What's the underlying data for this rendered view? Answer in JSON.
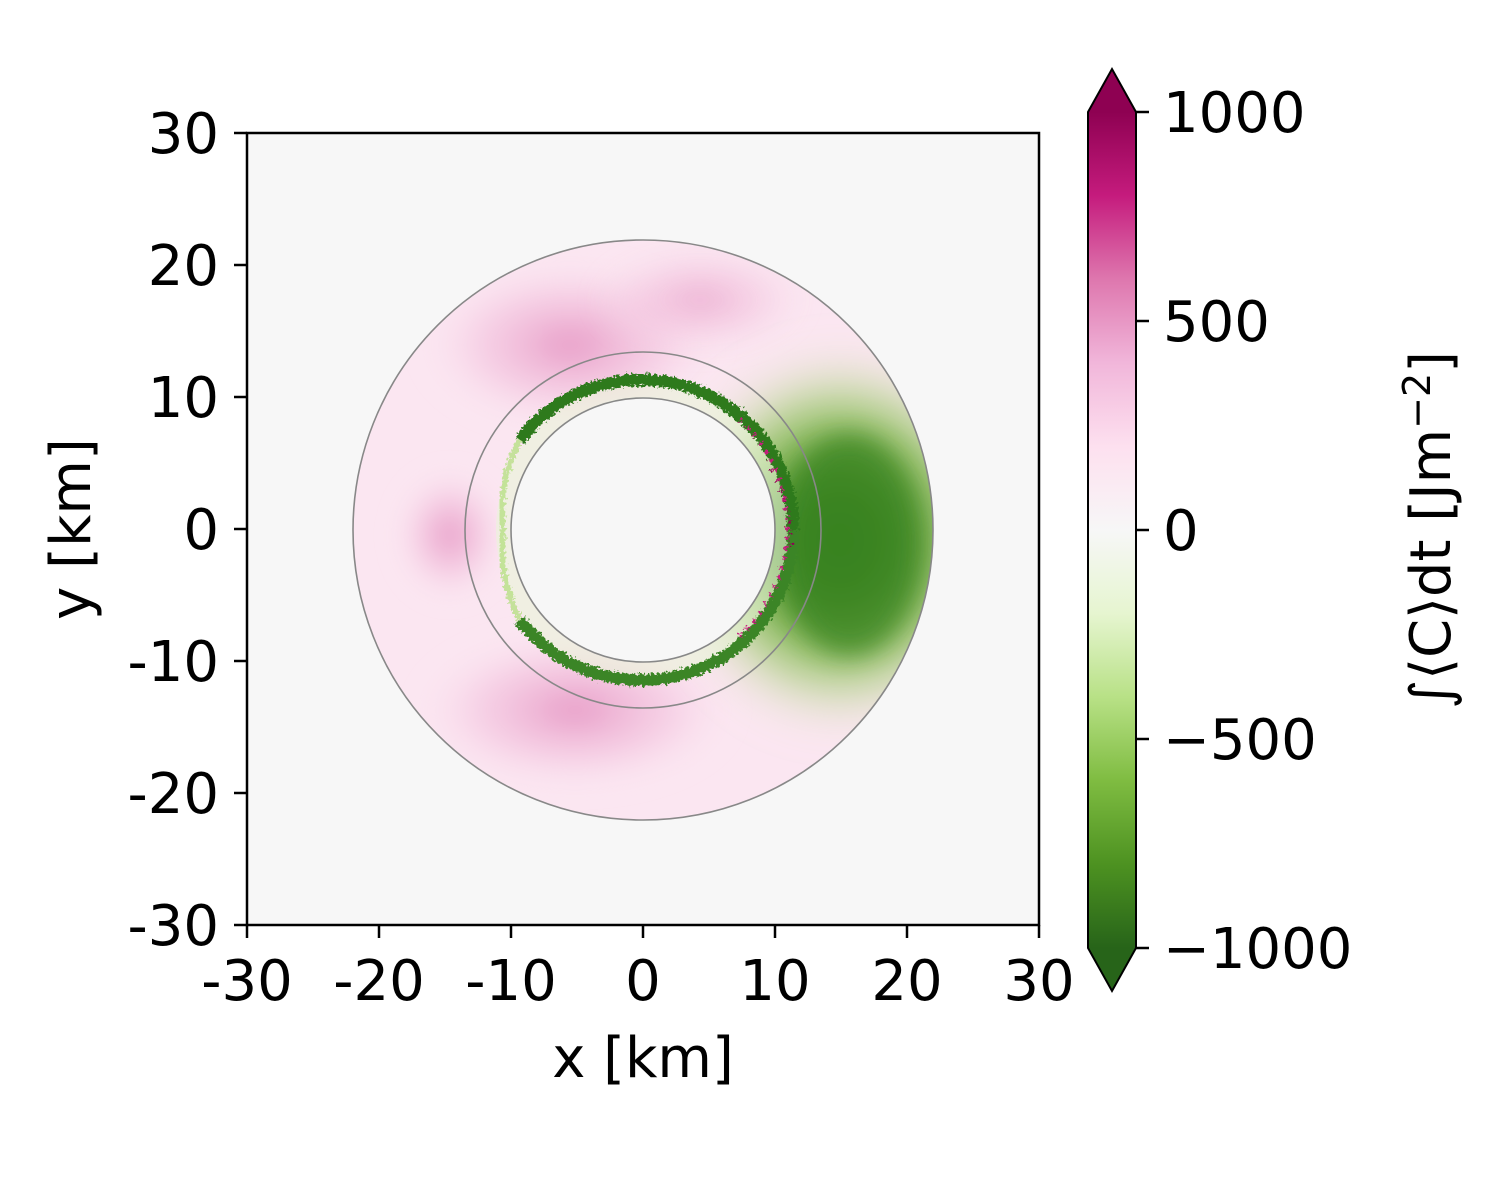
{
  "chart_data": {
    "type": "heatmap",
    "title": "",
    "xlabel": "x [km]",
    "ylabel": "y [km]",
    "xlim": [
      -30,
      30
    ],
    "ylim": [
      -30,
      30
    ],
    "xticks": [
      -30,
      -20,
      -10,
      0,
      10,
      20,
      30
    ],
    "xtick_labels": [
      "-30",
      "-20",
      "-10",
      "0",
      "10",
      "20",
      "30"
    ],
    "yticks": [
      -30,
      -20,
      -10,
      0,
      10,
      20,
      30
    ],
    "ytick_labels": [
      "-30",
      "-20",
      "-10",
      "0",
      "10",
      "20",
      "30"
    ],
    "grid": false,
    "background_value": 0,
    "ring_radii_km": [
      10,
      13.5,
      22
    ],
    "field_features": [
      {
        "name": "outer-pink-band",
        "center": [
          0,
          0
        ],
        "r_inner": 13.5,
        "r_outer": 22,
        "value": 220
      },
      {
        "name": "upper-left-pink-lobe",
        "center": [
          -6,
          12
        ],
        "value": 330
      },
      {
        "name": "lower-left-pink-lobe",
        "center": [
          -6,
          -13
        ],
        "value": 320
      },
      {
        "name": "left-pink-lobe",
        "center": [
          -15,
          0
        ],
        "value": 300
      },
      {
        "name": "east-green-lobe",
        "center": [
          15,
          -1
        ],
        "value": -880
      },
      {
        "name": "inner-green-eyewall-ring",
        "center": [
          0,
          0
        ],
        "r_inner": 10,
        "r_outer": 12,
        "value": -750,
        "with_magenta_streaks": true
      }
    ],
    "colorbar": {
      "label": "∫⟨C⟩dt [Jm",
      "label_superscript": "−2",
      "label_close": "]",
      "vmin": -1000,
      "vmax": 1000,
      "extend": "both",
      "colormap": "PiYG_r",
      "ticks": [
        1000,
        500,
        0,
        -500,
        -1000
      ],
      "tick_labels": [
        "1000",
        "500",
        "0",
        "−500",
        "−1000"
      ],
      "colors": [
        "#8e0152",
        "#c51b7d",
        "#de77ae",
        "#f1b6da",
        "#fde0ef",
        "#f7f7f7",
        "#e6f5d0",
        "#b8e186",
        "#7fbc41",
        "#4d9221",
        "#276419"
      ]
    }
  }
}
